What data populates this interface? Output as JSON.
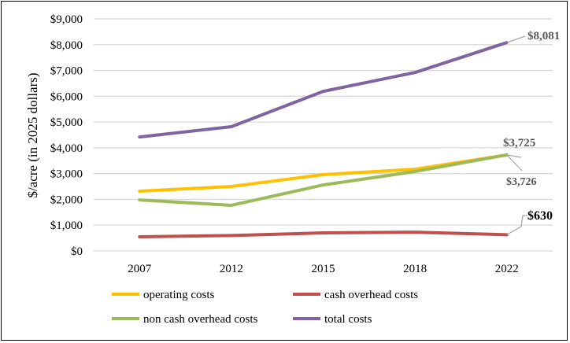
{
  "chart_data": {
    "type": "line",
    "title": "",
    "xlabel": "",
    "ylabel": "$/acre (in 2025 dollars)",
    "categories": [
      "2007",
      "2012",
      "2015",
      "2018",
      "2022"
    ],
    "ylim": [
      0,
      9000
    ],
    "yticks": [
      0,
      1000,
      2000,
      3000,
      4000,
      5000,
      6000,
      7000,
      8000,
      9000
    ],
    "ytick_labels": [
      "$0",
      "$1,000",
      "$2,000",
      "$3,000",
      "$4,000",
      "$5,000",
      "$6,000",
      "$7,000",
      "$8,000",
      "$9,000"
    ],
    "grid": true,
    "legend_position": "bottom",
    "series": [
      {
        "name": "operating costs",
        "color": "#FFC000",
        "values": [
          2320,
          2500,
          2960,
          3170,
          3725
        ]
      },
      {
        "name": "cash overhead costs",
        "color": "#C0504D",
        "values": [
          550,
          600,
          700,
          730,
          630
        ]
      },
      {
        "name": "non cash overhead costs",
        "color": "#9BBB59",
        "values": [
          1980,
          1770,
          2560,
          3080,
          3726
        ]
      },
      {
        "name": "total costs",
        "color": "#8064A2",
        "values": [
          4420,
          4820,
          6190,
          6920,
          8081
        ]
      }
    ],
    "annotations": [
      {
        "text": "$8,081",
        "series": "total costs"
      },
      {
        "text": "$3,725",
        "series": "operating costs"
      },
      {
        "text": "$3,726",
        "series": "non cash overhead costs"
      },
      {
        "text": "$630",
        "series": "cash overhead costs"
      }
    ]
  }
}
